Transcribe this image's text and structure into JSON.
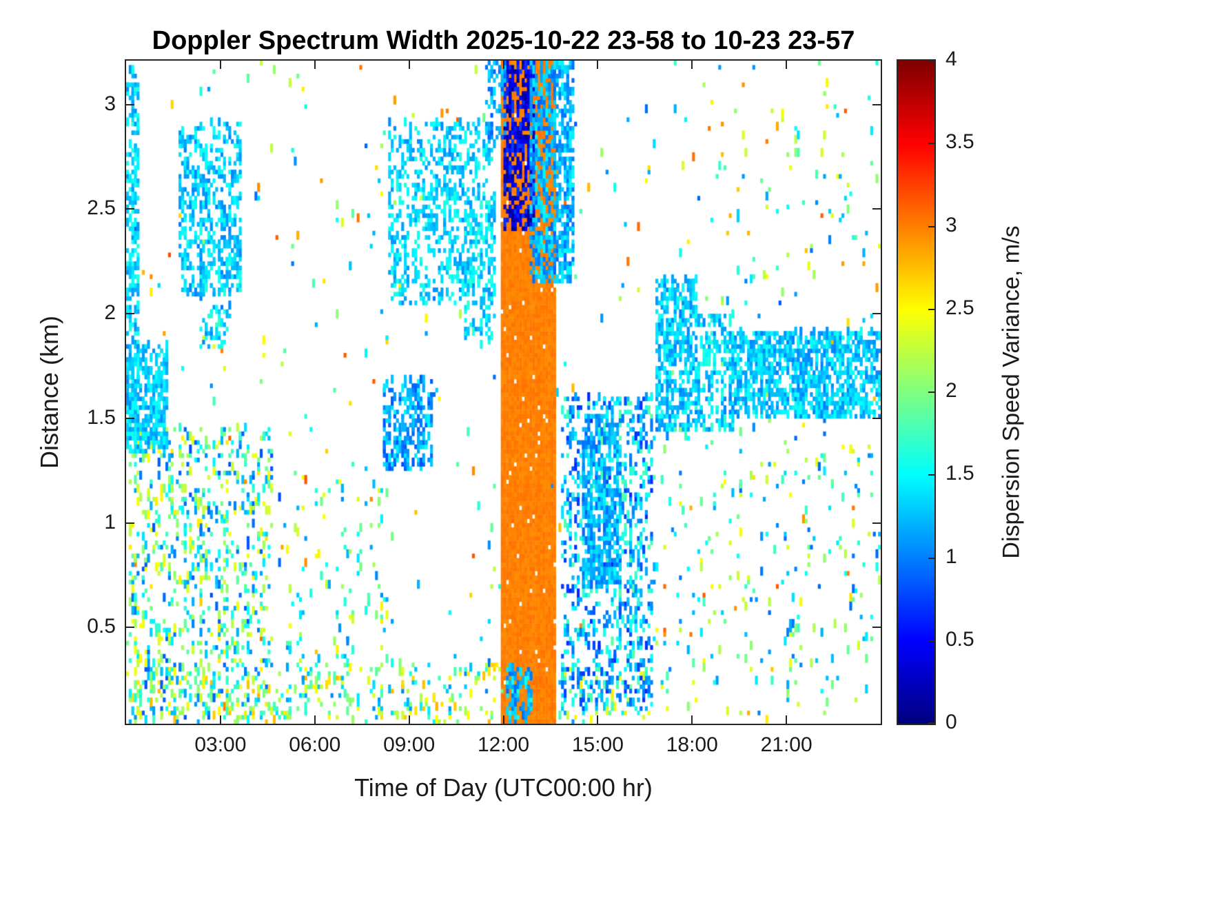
{
  "chart_data": {
    "type": "heatmap",
    "title": "Doppler Spectrum Width 2025-10-22 23-58 to 10-23 23-57",
    "xlabel": "Time of Day (UTC00:00 hr)",
    "ylabel": "Distance (km)",
    "colorbar_label": "Dispersion Speed Variance, m/s",
    "colormap": "jet",
    "grid": false,
    "value_range": [
      0,
      4
    ],
    "x_range_hours": [
      0,
      24
    ],
    "y_range_km": [
      0.04,
      3.21
    ],
    "x_ticks": [
      {
        "hour": 3,
        "label": "03:00"
      },
      {
        "hour": 6,
        "label": "06:00"
      },
      {
        "hour": 9,
        "label": "09:00"
      },
      {
        "hour": 12,
        "label": "12:00"
      },
      {
        "hour": 15,
        "label": "15:00"
      },
      {
        "hour": 18,
        "label": "18:00"
      },
      {
        "hour": 21,
        "label": "21:00"
      }
    ],
    "y_ticks": [
      {
        "km": 0.5,
        "label": "0.5"
      },
      {
        "km": 1,
        "label": "1"
      },
      {
        "km": 1.5,
        "label": "1.5"
      },
      {
        "km": 2,
        "label": "2"
      },
      {
        "km": 2.5,
        "label": "2.5"
      },
      {
        "km": 3,
        "label": "3"
      }
    ],
    "colorbar_ticks": [
      {
        "value": 0,
        "label": "0"
      },
      {
        "value": 0.5,
        "label": "0.5"
      },
      {
        "value": 1,
        "label": "1"
      },
      {
        "value": 1.5,
        "label": "1.5"
      },
      {
        "value": 2,
        "label": "2"
      },
      {
        "value": 2.5,
        "label": "2.5"
      },
      {
        "value": 3,
        "label": "3"
      },
      {
        "value": 3.5,
        "label": "3.5"
      },
      {
        "value": 4,
        "label": "4"
      }
    ],
    "features": [
      {
        "name": "sparse-noise-all",
        "t": [
          0,
          24
        ],
        "z": [
          0.06,
          3.21
        ],
        "density": 0.01,
        "value": 2.0,
        "spread": 1.2
      },
      {
        "name": "bottom-boundary-speckle",
        "t": [
          0,
          12.0
        ],
        "z": [
          0.05,
          0.32
        ],
        "density": 0.13,
        "value": 1.9,
        "spread": 0.9
      },
      {
        "name": "bottom-speckle-pm",
        "t": [
          13.6,
          16.5
        ],
        "z": [
          0.05,
          0.3
        ],
        "density": 0.1,
        "value": 1.8,
        "spread": 0.9
      },
      {
        "name": "early-low-mixed",
        "t": [
          0.1,
          4.6
        ],
        "z": [
          0.07,
          1.45
        ],
        "density": 0.2,
        "value": 1.7,
        "spread": 0.9
      },
      {
        "name": "early-left-cyan-column",
        "t": [
          0,
          0.35
        ],
        "z": [
          1.4,
          3.15
        ],
        "density": 0.45,
        "value": 1.35,
        "spread": 0.3
      },
      {
        "name": "early-mid-cyan-band",
        "t": [
          0,
          1.3
        ],
        "z": [
          1.35,
          1.85
        ],
        "density": 0.55,
        "value": 1.3,
        "spread": 0.25
      },
      {
        "name": "early-high-cyan-patch",
        "t": [
          1.7,
          3.6
        ],
        "z": [
          2.1,
          2.9
        ],
        "density": 0.4,
        "value": 1.3,
        "spread": 0.3
      },
      {
        "name": "early-high-cyan-lower",
        "t": [
          2.4,
          3.3
        ],
        "z": [
          1.85,
          2.25
        ],
        "density": 0.25,
        "value": 1.35,
        "spread": 0.35
      },
      {
        "name": "mid-morning-sparse",
        "t": [
          5.0,
          8.3
        ],
        "z": [
          0.07,
          1.3
        ],
        "density": 0.05,
        "value": 1.8,
        "spread": 0.8
      },
      {
        "name": "morning-cyan-patch",
        "t": [
          8.2,
          9.7
        ],
        "z": [
          1.25,
          1.68
        ],
        "density": 0.5,
        "value": 1.15,
        "spread": 0.35
      },
      {
        "name": "morning-high-cyan",
        "t": [
          8.4,
          11.7
        ],
        "z": [
          2.05,
          2.9
        ],
        "density": 0.32,
        "value": 1.35,
        "spread": 0.3
      },
      {
        "name": "prenoon-mid-cyan",
        "t": [
          10.8,
          11.7
        ],
        "z": [
          1.85,
          2.55
        ],
        "density": 0.25,
        "value": 1.4,
        "spread": 0.3
      },
      {
        "name": "orange-rain-column",
        "t": [
          11.95,
          13.6
        ],
        "z": [
          0.05,
          3.21
        ],
        "density": 0.97,
        "value": 3.0,
        "spread": 0.06
      },
      {
        "name": "navy-top-streaks",
        "t": [
          12.05,
          12.95
        ],
        "z": [
          2.4,
          3.21
        ],
        "density": 0.55,
        "value": 0.4,
        "spread": 0.35
      },
      {
        "name": "cyan-top-left",
        "t": [
          11.45,
          12.05
        ],
        "z": [
          2.85,
          3.21
        ],
        "density": 0.4,
        "value": 1.15,
        "spread": 0.3
      },
      {
        "name": "cyan-top-right",
        "t": [
          12.9,
          14.25
        ],
        "z": [
          2.15,
          3.21
        ],
        "density": 0.55,
        "value": 1.2,
        "spread": 0.3
      },
      {
        "name": "column-bottom-cyan",
        "t": [
          12.1,
          12.9
        ],
        "z": [
          0.05,
          0.3
        ],
        "density": 0.5,
        "value": 1.3,
        "spread": 0.4
      },
      {
        "name": "afternoon-mixed",
        "t": [
          13.9,
          16.7
        ],
        "z": [
          0.12,
          1.6
        ],
        "density": 0.28,
        "value": 1.25,
        "spread": 0.6
      },
      {
        "name": "afternoon-core",
        "t": [
          14.5,
          15.7
        ],
        "z": [
          0.7,
          1.5
        ],
        "density": 0.5,
        "value": 1.2,
        "spread": 0.3
      },
      {
        "name": "evening-cyan-blob",
        "t": [
          16.9,
          18.15
        ],
        "z": [
          1.45,
          2.15
        ],
        "density": 0.55,
        "value": 1.3,
        "spread": 0.3
      },
      {
        "name": "evening-transition",
        "t": [
          18.1,
          19.3
        ],
        "z": [
          1.45,
          2.0
        ],
        "density": 0.35,
        "value": 1.35,
        "spread": 0.35
      },
      {
        "name": "night-cyan-band",
        "t": [
          19.2,
          24
        ],
        "z": [
          1.5,
          1.9
        ],
        "density": 0.62,
        "value": 1.3,
        "spread": 0.3
      },
      {
        "name": "night-sparse-low",
        "t": [
          16.6,
          24
        ],
        "z": [
          0.1,
          1.45
        ],
        "density": 0.035,
        "value": 1.7,
        "spread": 0.8
      },
      {
        "name": "night-sparse-high",
        "t": [
          18.5,
          24
        ],
        "z": [
          1.95,
          3.1
        ],
        "density": 0.015,
        "value": 1.9,
        "spread": 1.0
      }
    ]
  }
}
